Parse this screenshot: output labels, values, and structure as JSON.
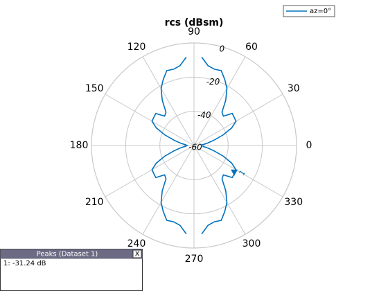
{
  "chart_data": {
    "type": "polar",
    "title": "rcs (dBsm)",
    "x": [
      0,
      5,
      10,
      15,
      20,
      25,
      30,
      35,
      40,
      45,
      50,
      55,
      60,
      65,
      70,
      75,
      80,
      85,
      90,
      95,
      100,
      105,
      110,
      115,
      120,
      125,
      130,
      135,
      140,
      145,
      150,
      155,
      160,
      165,
      170,
      175,
      180,
      185,
      190,
      195,
      200,
      205,
      210,
      215,
      220,
      225,
      230,
      235,
      240,
      245,
      250,
      255,
      260,
      265,
      270,
      275,
      280,
      285,
      290,
      295,
      300,
      305,
      310,
      315,
      320,
      325,
      330,
      335,
      340,
      345,
      350,
      355
    ],
    "series": [
      {
        "name": "az=0°",
        "color": "#0072bd",
        "values": [
          -56,
          -55,
          -51.9,
          -47.8,
          -41.8,
          -35.7,
          -31.6,
          -31.3,
          -30.8,
          -35.7,
          -34.5,
          -27.6,
          -21.5,
          -17.4,
          -13.4,
          -13.8,
          -12.6,
          -8.1,
          null,
          -8.1,
          -12.6,
          -13.8,
          -13.4,
          -17.4,
          -21.5,
          -27.6,
          -34.5,
          -35.7,
          -30.8,
          -31.3,
          -31.6,
          -35.7,
          -41.8,
          -47.8,
          -51.9,
          -55,
          -56,
          -55,
          -51.9,
          -47.8,
          -41.8,
          -35.7,
          -31.6,
          -31.3,
          -30.8,
          -35.7,
          -34.5,
          -27.6,
          -21.5,
          -17.4,
          -13.4,
          -13.8,
          -12.6,
          -8.1,
          null,
          -8.1,
          -12.6,
          -13.8,
          -13.4,
          -17.4,
          -21.5,
          -27.6,
          -34.5,
          -35.7,
          -30.8,
          -31.24,
          -31.6,
          -35.7,
          -41.8,
          -47.8,
          -51.9,
          -55
        ]
      }
    ],
    "rlim": [
      -60,
      0
    ],
    "rticks": [
      -60,
      -40,
      -20,
      0
    ],
    "thetaticks": [
      0,
      30,
      60,
      90,
      120,
      150,
      180,
      210,
      240,
      270,
      300,
      330
    ],
    "legend": "upper-right",
    "markers": [
      {
        "label": "1",
        "theta": 325,
        "r": -31.24
      }
    ]
  },
  "peaks_panel": {
    "title": "Peaks (Dataset 1)",
    "close": "X",
    "entries": [
      "1: -31.24 dB"
    ]
  }
}
